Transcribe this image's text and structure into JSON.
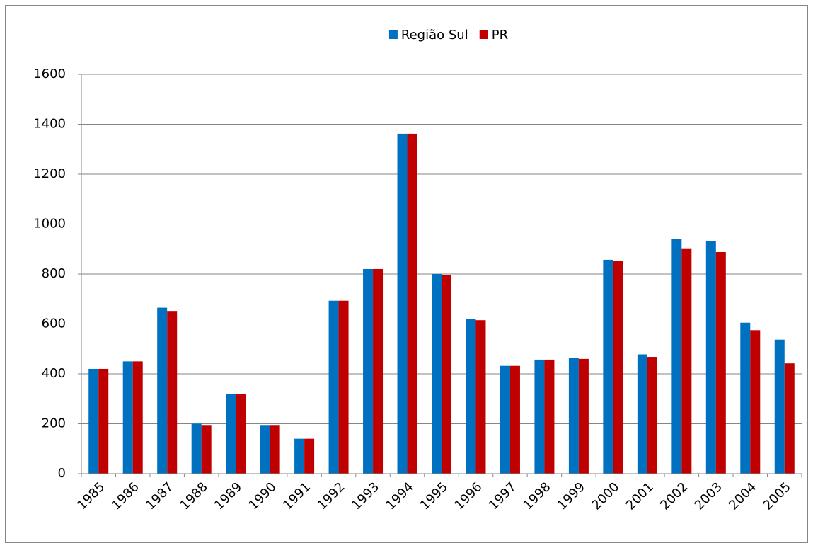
{
  "chart_data": {
    "type": "bar",
    "categories": [
      "1985",
      "1986",
      "1987",
      "1988",
      "1989",
      "1990",
      "1991",
      "1992",
      "1993",
      "1994",
      "1995",
      "1996",
      "1997",
      "1998",
      "1999",
      "2000",
      "2001",
      "2002",
      "2003",
      "2004",
      "2005"
    ],
    "series": [
      {
        "name": "Região Sul",
        "color": "#0070c0",
        "values": [
          420,
          450,
          665,
          200,
          318,
          195,
          140,
          693,
          820,
          1362,
          800,
          620,
          432,
          457,
          463,
          857,
          478,
          940,
          933,
          605,
          537
        ]
      },
      {
        "name": "PR",
        "color": "#c00000",
        "values": [
          420,
          450,
          652,
          195,
          318,
          195,
          140,
          693,
          820,
          1362,
          795,
          615,
          432,
          457,
          460,
          853,
          468,
          903,
          888,
          575,
          442
        ]
      }
    ],
    "ylim": [
      0,
      1600
    ],
    "yticks": [
      0,
      200,
      400,
      600,
      800,
      1000,
      1200,
      1400,
      1600
    ],
    "grid": true,
    "legend": "top"
  }
}
